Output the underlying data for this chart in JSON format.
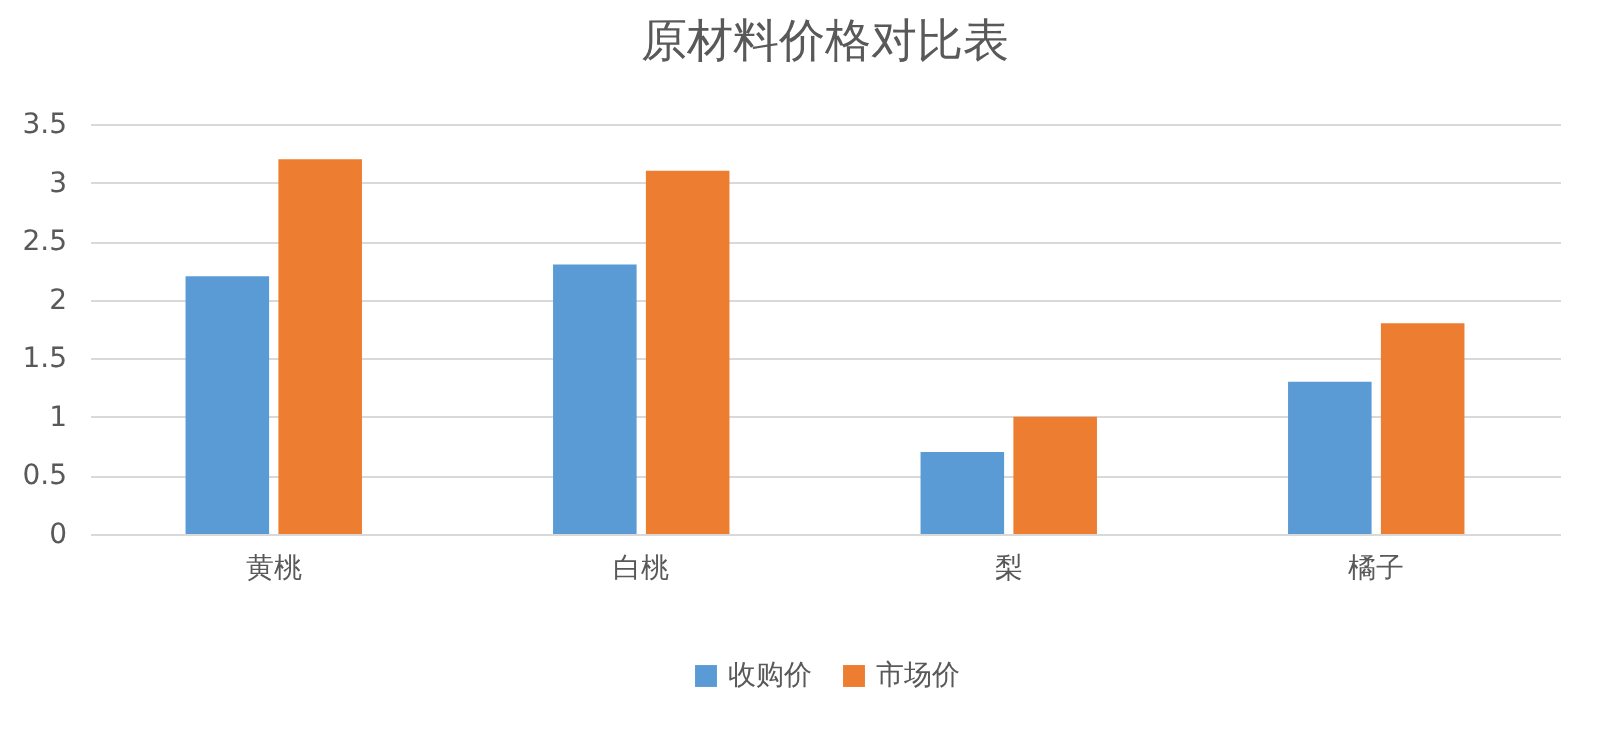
{
  "chart_data": {
    "type": "bar",
    "title": "原材料价格对比表",
    "categories": [
      "黄桃",
      "白桃",
      "梨",
      "橘子"
    ],
    "series": [
      {
        "name": "收购价",
        "color": "#5b9bd5",
        "values": [
          2.2,
          2.3,
          0.7,
          1.3
        ]
      },
      {
        "name": "市场价",
        "color": "#ed7d31",
        "values": [
          3.2,
          3.1,
          1.0,
          1.8
        ]
      }
    ],
    "ylim": [
      0,
      3.5
    ],
    "yticks": [
      0,
      0.5,
      1,
      1.5,
      2,
      2.5,
      3,
      3.5
    ],
    "grid": "y",
    "legend": "bottom"
  }
}
